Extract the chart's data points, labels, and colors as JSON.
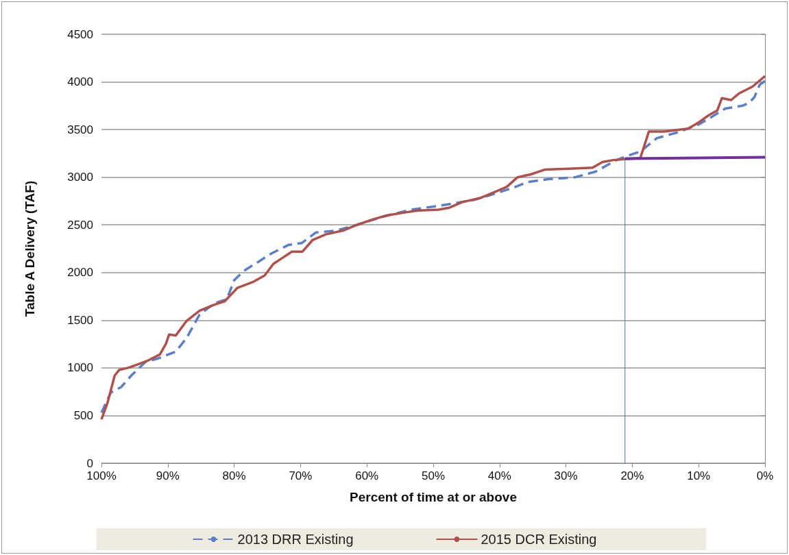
{
  "chart_data": {
    "type": "line",
    "xlabel": "Percent of time at or above",
    "ylabel": "Table A Delivery (TAF)",
    "xlim": [
      100,
      0
    ],
    "xticks": [
      {
        "value": 100,
        "label": "100%"
      },
      {
        "value": 90,
        "label": "90%"
      },
      {
        "value": 80,
        "label": "80%"
      },
      {
        "value": 70,
        "label": "70%"
      },
      {
        "value": 60,
        "label": "60%"
      },
      {
        "value": 50,
        "label": "50%"
      },
      {
        "value": 40,
        "label": "40%"
      },
      {
        "value": 30,
        "label": "30%"
      },
      {
        "value": 20,
        "label": "20%"
      },
      {
        "value": 10,
        "label": "10%"
      },
      {
        "value": 0,
        "label": "0%"
      }
    ],
    "ylim": [
      0,
      4500
    ],
    "yticks": [
      0,
      500,
      1000,
      1500,
      2000,
      2500,
      3000,
      3500,
      4000,
      4500
    ],
    "grid": "y",
    "legend": "bottom",
    "marker": "none",
    "series": [
      {
        "name": "2013 DRR Existing",
        "color": "#5b7fc7",
        "line_style": "dashed",
        "x": [
          100,
          98.6,
          97,
          95.5,
          93.4,
          91.4,
          88.8,
          87.2,
          85.2,
          82.9,
          81.1,
          80,
          78.5,
          76.4,
          74.4,
          71.8,
          69.8,
          67.7,
          64.6,
          61.5,
          57.4,
          53.3,
          49.2,
          44,
          42,
          37.9,
          35.8,
          32.7,
          28.6,
          25.5,
          22.4,
          20.9,
          18.8,
          16.3,
          13.2,
          10.1,
          8.1,
          6,
          3.4,
          2.4,
          1.6,
          0.8,
          0
        ],
        "values": [
          530,
          740,
          800,
          920,
          1060,
          1100,
          1170,
          1310,
          1560,
          1680,
          1720,
          1920,
          2020,
          2110,
          2200,
          2290,
          2310,
          2420,
          2440,
          2500,
          2590,
          2660,
          2700,
          2760,
          2800,
          2890,
          2950,
          2980,
          3000,
          3060,
          3180,
          3220,
          3270,
          3410,
          3470,
          3550,
          3630,
          3720,
          3750,
          3780,
          3840,
          3970,
          4010
        ]
      },
      {
        "name": "2015 DCR Existing",
        "color": "#b0504a",
        "line_style": "solid",
        "x": [
          100,
          99.1,
          98,
          97.3,
          96,
          94.4,
          92.9,
          91.2,
          90.3,
          89.8,
          88.8,
          87.2,
          85.2,
          83.1,
          81.4,
          79.5,
          77.2,
          75.4,
          74.1,
          72.8,
          71.3,
          69.7,
          68.2,
          66.2,
          63.6,
          61.5,
          59,
          56.9,
          54.3,
          52.3,
          49.2,
          47.6,
          45.6,
          43,
          40.9,
          38.9,
          37.3,
          35.3,
          33.2,
          29.6,
          26,
          24.5,
          22.9,
          21.1,
          18.8,
          17.5,
          15.2,
          11.6,
          10.1,
          8.5,
          7.2,
          6.5,
          5.1,
          3.9,
          1.9,
          0
        ],
        "values": [
          460,
          630,
          920,
          980,
          1000,
          1040,
          1080,
          1140,
          1250,
          1350,
          1340,
          1490,
          1600,
          1660,
          1700,
          1840,
          1900,
          1970,
          2090,
          2150,
          2220,
          2220,
          2340,
          2400,
          2440,
          2500,
          2560,
          2600,
          2630,
          2650,
          2660,
          2680,
          2740,
          2780,
          2840,
          2900,
          3000,
          3030,
          3080,
          3090,
          3100,
          3160,
          3180,
          3190,
          3200,
          3480,
          3480,
          3510,
          3570,
          3650,
          3700,
          3830,
          3810,
          3880,
          3950,
          4060
        ]
      },
      {
        "color": "#7030a0",
        "line_style": "solid",
        "x": [
          21.1,
          0
        ],
        "values": [
          3195,
          3210
        ]
      },
      {
        "color": "#4472c4",
        "line_style": "solid",
        "x": [
          21.1,
          21.1
        ],
        "values": [
          0,
          3190
        ]
      }
    ]
  }
}
